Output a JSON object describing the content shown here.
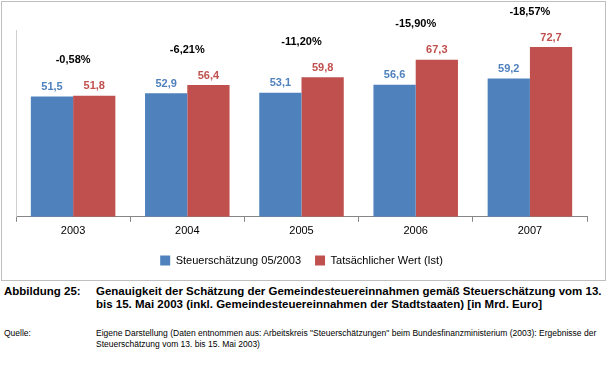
{
  "chart_data": {
    "type": "bar",
    "title": "Genauigkeit der Schätzung der Gemeindesteuereinnahmen gemäß Steuerschätzung vom 13. bis 15. Mai 2003 (inkl. Gemeindesteuereinnahmen der Stadtstaaten) [in Mrd. Euro]",
    "figure_label": "Abbildung 25:",
    "source_label": "Quelle:",
    "source": "Eigene Darstellung (Daten entnommen aus: Arbeitskreis \"Steuerschätzungen\" beim Bundesfinanzministerium (2003): Ergebnisse der Steuerschätzung vom 13. bis 15. Mai 2003)",
    "categories": [
      "2003",
      "2004",
      "2005",
      "2006",
      "2007"
    ],
    "series": [
      {
        "name": "Steuerschätzung 05/2003",
        "color": "#4f81bd",
        "values": [
          51.5,
          52.9,
          53.1,
          56.6,
          59.2
        ],
        "value_labels": [
          "51,5",
          "52,9",
          "53,1",
          "56,6",
          "59,2"
        ]
      },
      {
        "name": "Tatsächlicher Wert (Ist)",
        "color": "#c0504d",
        "values": [
          51.8,
          56.4,
          59.8,
          67.3,
          72.7
        ],
        "value_labels": [
          "51,8",
          "56,4",
          "59,8",
          "67,3",
          "72,7"
        ]
      }
    ],
    "annotations": [
      "-0,58%",
      "-6,21%",
      "-11,20%",
      "-15,90%",
      "-18,57%"
    ],
    "ylim": [
      0,
      80
    ],
    "yticks": [
      0,
      80
    ],
    "grid": false,
    "legend": "bottom",
    "data_labels": true,
    "tick_labels": "x"
  }
}
